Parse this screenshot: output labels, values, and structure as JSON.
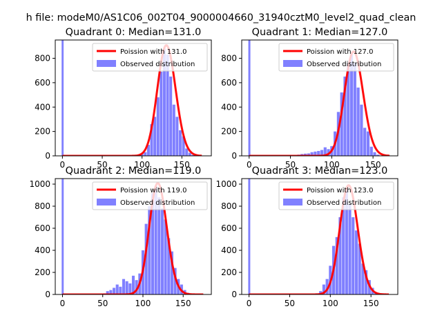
{
  "figure": {
    "suptitle": "h file: modeM0/AS1C06_002T04_9000004660_31940cztM0_level2_quad_clean"
  },
  "colors": {
    "hist": "#8080ff",
    "poisson": "#ff0000",
    "axes": "#000000"
  },
  "chart_data": [
    {
      "type": "histogram+line",
      "title": "Quadrant 0: Median=131.0",
      "median": 131.0,
      "xlim": [
        -9,
        187
      ],
      "ylim": [
        0,
        950
      ],
      "xticks": [
        0,
        50,
        100,
        150
      ],
      "yticks": [
        0,
        200,
        400,
        600,
        800
      ],
      "legend": {
        "location": "upper right",
        "entries": [
          "Poission with 131.0",
          "Observed distribution"
        ]
      },
      "bin_width": 3.5,
      "zero_bin": 950,
      "hist": [
        [
          92,
          5
        ],
        [
          96,
          8
        ],
        [
          100,
          15
        ],
        [
          104,
          30
        ],
        [
          108,
          90
        ],
        [
          112,
          260
        ],
        [
          116,
          320
        ],
        [
          120,
          480
        ],
        [
          124,
          690
        ],
        [
          128,
          880
        ],
        [
          132,
          830
        ],
        [
          136,
          650
        ],
        [
          140,
          420
        ],
        [
          144,
          320
        ],
        [
          148,
          210
        ],
        [
          152,
          160
        ],
        [
          156,
          60
        ],
        [
          160,
          25
        ],
        [
          164,
          8
        ]
      ],
      "x_start": 0,
      "x_end": 175
    },
    {
      "type": "histogram+line",
      "title": "Quadrant 1: Median=127.0",
      "median": 127.0,
      "xlim": [
        -9,
        180
      ],
      "ylim": [
        0,
        950
      ],
      "xticks": [
        0,
        50,
        100,
        150
      ],
      "yticks": [
        0,
        200,
        400,
        600,
        800
      ],
      "legend": {
        "location": "upper right",
        "entries": [
          "Poission with 127.0",
          "Observed distribution"
        ]
      },
      "bin_width": 3.5,
      "zero_bin": 950,
      "hist": [
        [
          60,
          10
        ],
        [
          64,
          15
        ],
        [
          68,
          18
        ],
        [
          72,
          20
        ],
        [
          76,
          30
        ],
        [
          80,
          35
        ],
        [
          84,
          40
        ],
        [
          88,
          48
        ],
        [
          92,
          70
        ],
        [
          96,
          55
        ],
        [
          100,
          80
        ],
        [
          104,
          200
        ],
        [
          108,
          360
        ],
        [
          112,
          520
        ],
        [
          116,
          650
        ],
        [
          120,
          760
        ],
        [
          124,
          830
        ],
        [
          128,
          760
        ],
        [
          132,
          560
        ],
        [
          136,
          420
        ],
        [
          140,
          230
        ],
        [
          144,
          200
        ],
        [
          148,
          75
        ],
        [
          152,
          30
        ],
        [
          156,
          10
        ]
      ],
      "x_start": 0,
      "x_end": 170
    },
    {
      "type": "histogram+line",
      "title": "Quadrant 2: Median=119.0",
      "median": 119.0,
      "xlim": [
        -9,
        185
      ],
      "ylim": [
        0,
        1050
      ],
      "xticks": [
        0,
        50,
        100,
        150
      ],
      "yticks": [
        0,
        200,
        400,
        600,
        800,
        1000
      ],
      "legend": {
        "location": "upper right",
        "entries": [
          "Poission with 119.0",
          "Observed distribution"
        ]
      },
      "bin_width": 3.5,
      "zero_bin": 1050,
      "hist": [
        [
          52,
          10
        ],
        [
          56,
          30
        ],
        [
          60,
          40
        ],
        [
          64,
          60
        ],
        [
          68,
          90
        ],
        [
          72,
          70
        ],
        [
          76,
          140
        ],
        [
          80,
          120
        ],
        [
          84,
          100
        ],
        [
          88,
          170
        ],
        [
          92,
          130
        ],
        [
          96,
          190
        ],
        [
          100,
          400
        ],
        [
          104,
          640
        ],
        [
          108,
          800
        ],
        [
          112,
          920
        ],
        [
          116,
          980
        ],
        [
          120,
          880
        ],
        [
          124,
          780
        ],
        [
          128,
          680
        ],
        [
          132,
          510
        ],
        [
          136,
          390
        ],
        [
          140,
          240
        ],
        [
          144,
          140
        ],
        [
          148,
          90
        ],
        [
          152,
          40
        ],
        [
          156,
          15
        ]
      ],
      "x_start": 0,
      "x_end": 175
    },
    {
      "type": "histogram+line",
      "title": "Quadrant 3: Median=123.0",
      "median": 123.0,
      "xlim": [
        -9,
        183
      ],
      "ylim": [
        0,
        1050
      ],
      "xticks": [
        0,
        50,
        100,
        150
      ],
      "yticks": [
        0,
        200,
        400,
        600,
        800,
        1000
      ],
      "legend": {
        "location": "upper right",
        "entries": [
          "Poission with 123.0",
          "Observed distribution"
        ]
      },
      "bin_width": 3.5,
      "zero_bin": 1050,
      "hist": [
        [
          84,
          10
        ],
        [
          88,
          30
        ],
        [
          92,
          90
        ],
        [
          96,
          140
        ],
        [
          100,
          260
        ],
        [
          104,
          440
        ],
        [
          108,
          520
        ],
        [
          112,
          700
        ],
        [
          116,
          880
        ],
        [
          120,
          960
        ],
        [
          124,
          820
        ],
        [
          128,
          700
        ],
        [
          132,
          580
        ],
        [
          136,
          460
        ],
        [
          140,
          280
        ],
        [
          144,
          220
        ],
        [
          148,
          130
        ],
        [
          152,
          60
        ],
        [
          156,
          20
        ]
      ],
      "x_start": 0,
      "x_end": 172
    }
  ]
}
